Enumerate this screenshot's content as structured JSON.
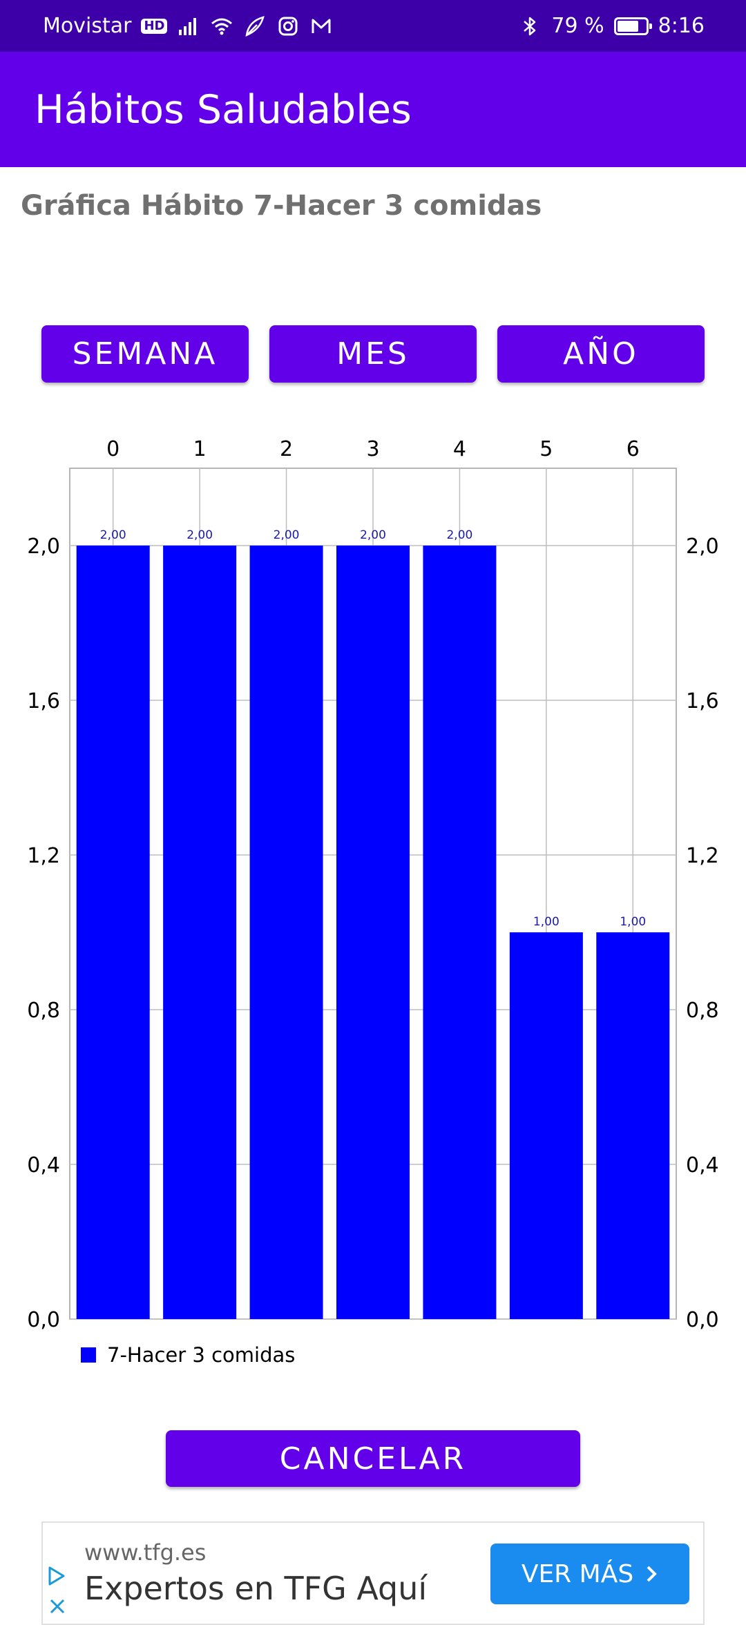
{
  "status_bar": {
    "carrier": "Movistar",
    "hd_badge": "HD",
    "battery": "79 %",
    "battery_level": 0.79,
    "time": "8:16",
    "icons": [
      "signal-icon",
      "wifi-icon",
      "leaf-icon",
      "instagram-icon",
      "gmail-icon",
      "bluetooth-icon"
    ]
  },
  "app_bar": {
    "title": "Hábitos Saludables"
  },
  "page": {
    "subtitle": "Gráfica Hábito 7-Hacer 3 comidas"
  },
  "range_buttons": {
    "week": "SEMANA",
    "month": "MES",
    "year": "AÑO"
  },
  "chart_data": {
    "type": "bar",
    "categories": [
      "0",
      "1",
      "2",
      "3",
      "4",
      "5",
      "6"
    ],
    "series": [
      {
        "name": "7-Hacer 3 comidas",
        "values": [
          2,
          2,
          2,
          2,
          2,
          1,
          1
        ],
        "color": "#0000ff"
      }
    ],
    "value_labels": [
      "2,00",
      "2,00",
      "2,00",
      "2,00",
      "2,00",
      "1,00",
      "1,00"
    ],
    "y_ticks": [
      "0,0",
      "0,4",
      "0,8",
      "1,2",
      "1,6",
      "2,0"
    ],
    "ylim": [
      0,
      2.2
    ],
    "x_axis_position": "top",
    "y_axes": "left-and-right",
    "grid": true,
    "legend": "bottom-left"
  },
  "actions": {
    "cancel": "CANCELAR"
  },
  "ad": {
    "url": "www.tfg.es",
    "headline": "Expertos en TFG Aquí",
    "cta": "VER MÁS",
    "cta_color": "#1a8cf0"
  },
  "colors": {
    "status_bar": "#3d00a8",
    "primary": "#6200ea",
    "bar": "#0000ff"
  }
}
